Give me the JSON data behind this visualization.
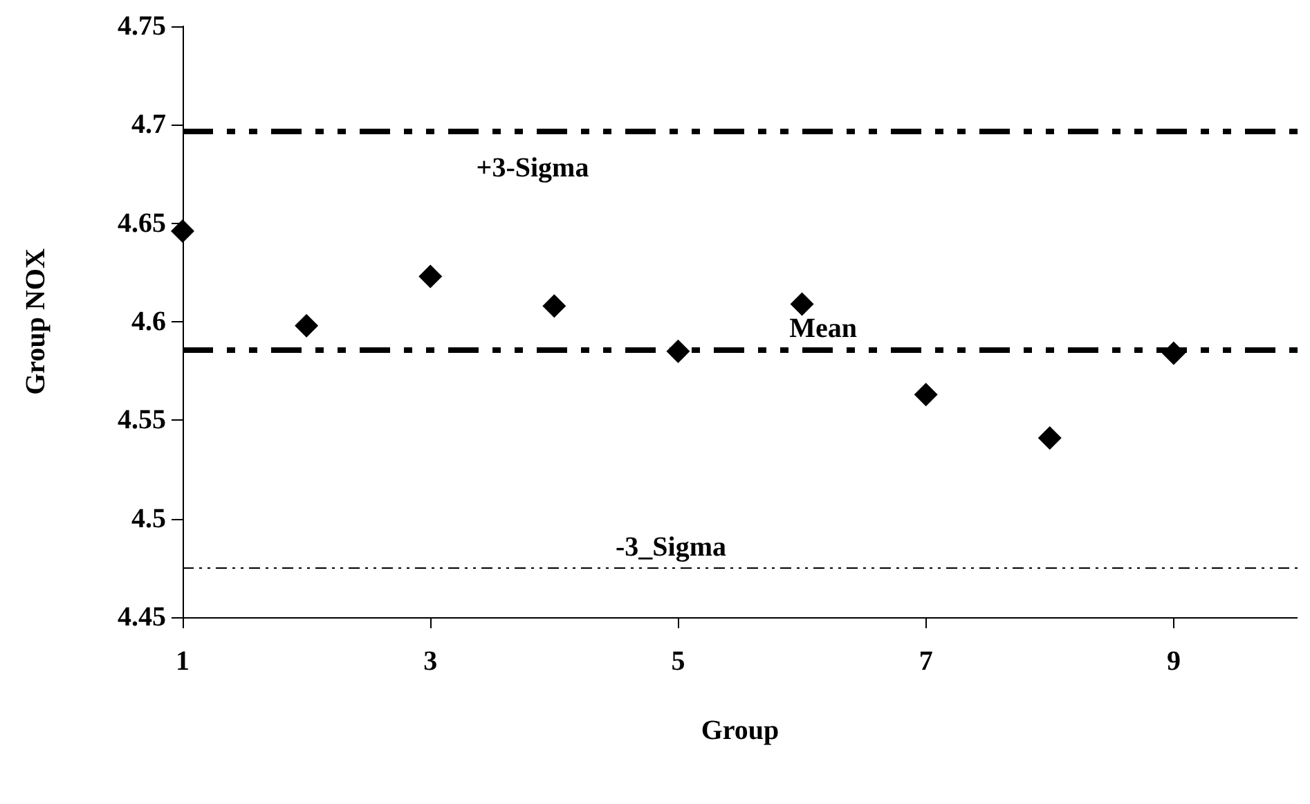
{
  "chart_data": {
    "type": "scatter",
    "xlabel": "Group",
    "ylabel": "Group NOX",
    "x": [
      1,
      2,
      3,
      4,
      5,
      6,
      7,
      8,
      9
    ],
    "series": [
      {
        "color": "#000000",
        "values": [
          4.646,
          4.598,
          4.623,
          4.608,
          4.585,
          4.609,
          4.563,
          4.541,
          4.584
        ]
      }
    ],
    "marker": "diamond",
    "xlim": [
      1,
      10
    ],
    "xticks": [
      1,
      3,
      5,
      7,
      9
    ],
    "ylim": [
      4.45,
      4.75
    ],
    "yticks": [
      4.45,
      4.5,
      4.55,
      4.6,
      4.65,
      4.7,
      4.75
    ],
    "ref_lines": [
      {
        "axis": "y",
        "value": 4.697,
        "label": "+3-Sigma",
        "color": "#000000",
        "line_style": "dashed"
      },
      {
        "axis": "y",
        "value": 4.586,
        "label": "Mean",
        "color": "#000000",
        "line_style": "dashed"
      },
      {
        "axis": "y",
        "value": 4.475,
        "label": "-3_Sigma",
        "color": "#000000",
        "line_style": "dotted"
      }
    ],
    "grid": false
  }
}
